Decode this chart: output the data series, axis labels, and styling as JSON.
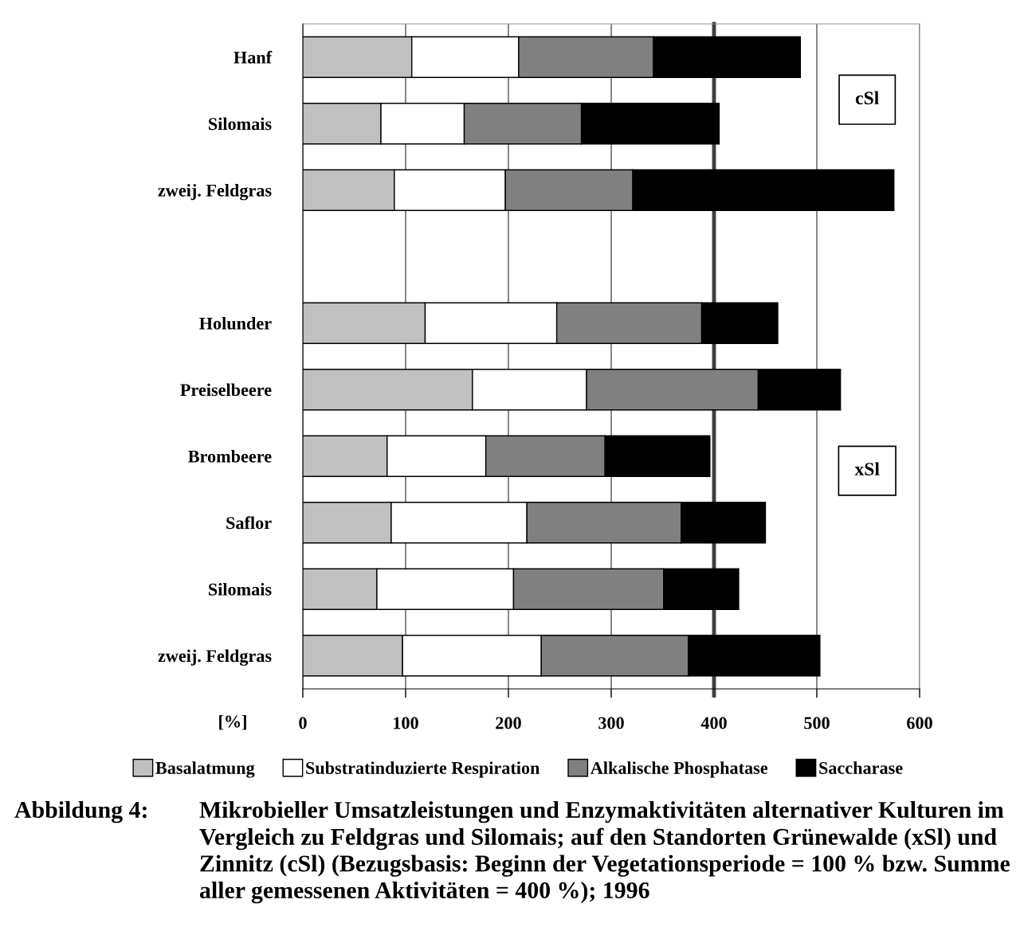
{
  "chart_data": {
    "type": "bar",
    "orientation": "horizontal",
    "stacked": true,
    "categories": [
      "Hanf",
      "Silomais",
      "zweij. Feldgras",
      null,
      "Holunder",
      "Preiselbeere",
      "Brombeere",
      "Saflor",
      "Silomais",
      "zweij. Feldgras"
    ],
    "series": [
      {
        "name": "Basalatmung",
        "color": "#c0c0c0",
        "values": [
          106,
          76,
          89,
          null,
          119,
          165,
          82,
          86,
          72,
          97
        ]
      },
      {
        "name": "Substratinduzierte Respiration",
        "color": "#ffffff",
        "values": [
          104,
          81,
          108,
          null,
          128,
          111,
          96,
          132,
          133,
          135
        ]
      },
      {
        "name": "Alkalische Phosphatase",
        "color": "#808080",
        "values": [
          131,
          114,
          124,
          null,
          141,
          167,
          116,
          150,
          146,
          143
        ]
      },
      {
        "name": "Saccharase",
        "color": "#000000",
        "values": [
          143,
          134,
          254,
          null,
          74,
          80,
          102,
          82,
          73,
          128
        ]
      }
    ],
    "xlabel": "[%]",
    "xlim": [
      0,
      600
    ],
    "xticks": [
      0,
      100,
      200,
      300,
      400,
      500,
      600
    ],
    "grid": "x",
    "legend": "bottom",
    "ref_lines": [
      {
        "axis": "x",
        "value": 400,
        "color": "#404040"
      }
    ],
    "annotations": [
      "cSl",
      "xSl",
      "Abbildung 4:",
      "Mikrobieller Umsatzleistungen und Enzymaktivitäten alternativer Kulturen im\nVergleich zu Feldgras und Silomais; auf den Standorten Grünewalde (xSl) und\nZinnitz (cSl) (Bezugsbasis: Beginn der Vegetationsperiode = 100 % bzw. Summe\naller gemessenen Aktivitäten = 400 %); 1996"
    ]
  }
}
